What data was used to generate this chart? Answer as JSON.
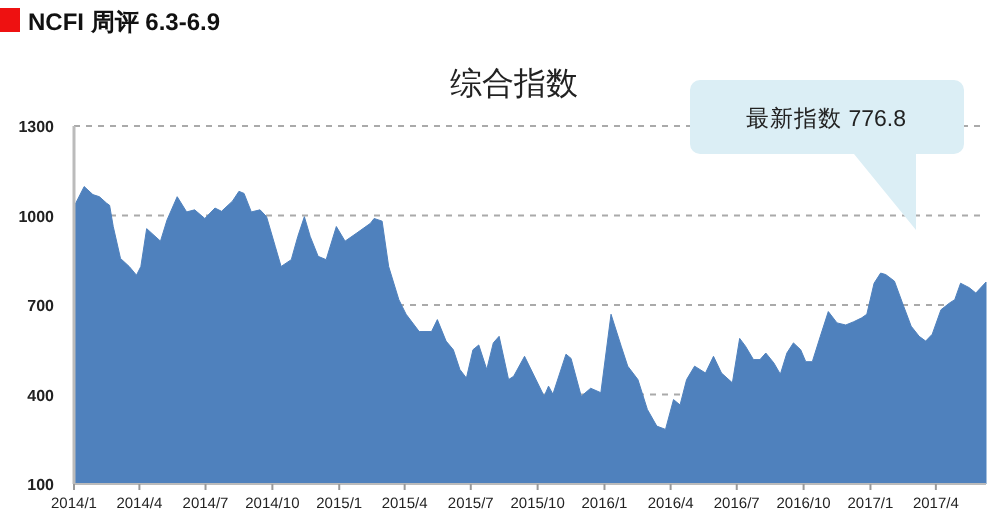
{
  "chart_data": {
    "type": "area",
    "title": "NCFI 周评 6.3-6.9",
    "subtitle": "综合指数",
    "annotations": [
      "最新指数 776.8"
    ],
    "x": [
      "2014-01-01",
      "2014-01-15",
      "2014-01-27",
      "2014-02-05",
      "2014-02-15",
      "2014-02-19",
      "2014-02-24",
      "2014-03-06",
      "2014-03-18",
      "2014-03-28",
      "2014-04-03",
      "2014-04-11",
      "2014-04-30",
      "2014-05-09",
      "2014-05-23",
      "2014-06-05",
      "2014-06-16",
      "2014-06-30",
      "2014-07-14",
      "2014-07-23",
      "2014-08-07",
      "2014-08-16",
      "2014-08-23",
      "2014-09-02",
      "2014-09-14",
      "2014-09-23",
      "2014-10-05",
      "2014-10-13",
      "2014-10-27",
      "2014-11-05",
      "2014-11-14",
      "2014-11-22",
      "2014-12-03",
      "2014-12-14",
      "2014-12-28",
      "2015-01-09",
      "2015-01-25",
      "2015-02-13",
      "2015-02-18",
      "2015-03-01",
      "2015-03-10",
      "2015-03-24",
      "2015-04-03",
      "2015-04-21",
      "2015-05-08",
      "2015-05-16",
      "2015-05-28",
      "2015-06-07",
      "2015-06-16",
      "2015-06-25",
      "2015-07-04",
      "2015-07-12",
      "2015-07-23",
      "2015-08-01",
      "2015-08-09",
      "2015-08-22",
      "2015-08-29",
      "2015-09-13",
      "2015-10-10",
      "2015-10-16",
      "2015-10-22",
      "2015-11-09",
      "2015-11-16",
      "2015-11-30",
      "2015-12-13",
      "2015-12-27",
      "2016-01-10",
      "2016-01-24",
      "2016-02-02",
      "2016-02-16",
      "2016-02-29",
      "2016-03-13",
      "2016-03-25",
      "2016-04-05",
      "2016-04-14",
      "2016-04-23",
      "2016-05-04",
      "2016-05-19",
      "2016-05-30",
      "2016-06-10",
      "2016-06-25",
      "2016-07-05",
      "2016-07-13",
      "2016-07-24",
      "2016-08-02",
      "2016-08-10",
      "2016-08-21",
      "2016-08-30",
      "2016-09-08",
      "2016-09-17",
      "2016-09-27",
      "2016-10-04",
      "2016-10-13",
      "2016-10-24",
      "2016-11-04",
      "2016-11-16",
      "2016-11-28",
      "2016-12-09",
      "2016-12-20",
      "2016-12-27",
      "2017-01-06",
      "2017-01-15",
      "2017-01-22",
      "2017-02-03",
      "2017-02-14",
      "2017-02-26",
      "2017-03-09",
      "2017-03-18",
      "2017-03-27",
      "2017-04-08",
      "2017-04-20",
      "2017-04-27",
      "2017-05-05",
      "2017-05-17",
      "2017-05-26",
      "2017-06-09"
    ],
    "series": [
      {
        "color": "#4f81bd",
        "values": [
          1030,
          1097,
          1070,
          1063,
          1041,
          1034,
          963,
          856,
          829,
          800,
          829,
          956,
          914,
          985,
          1063,
          1012,
          1019,
          990,
          1025,
          1014,
          1048,
          1081,
          1074,
          1012,
          1019,
          996,
          896,
          829,
          852,
          930,
          996,
          930,
          863,
          852,
          963,
          914,
          941,
          974,
          990,
          981,
          829,
          718,
          669,
          611,
          611,
          651,
          579,
          550,
          484,
          455,
          550,
          566,
          484,
          573,
          595,
          450,
          461,
          528,
          394,
          428,
          401,
          535,
          521,
          394,
          421,
          406,
          669,
          562,
          495,
          450,
          350,
          294,
          283,
          383,
          365,
          450,
          495,
          472,
          528,
          472,
          439,
          588,
          562,
          517,
          517,
          539,
          506,
          468,
          539,
          573,
          550,
          510,
          510,
          595,
          678,
          640,
          633,
          644,
          657,
          669,
          773,
          807,
          802,
          780,
          707,
          629,
          595,
          579,
          602,
          684,
          707,
          718,
          773,
          758,
          740,
          776.8
        ]
      }
    ],
    "xlim": [
      "2014-01-01",
      "2017-06-09"
    ],
    "xticks": [
      {
        "value": "2014-01-01",
        "label": "2014/1"
      },
      {
        "value": "2014-04-01",
        "label": "2014/4"
      },
      {
        "value": "2014-07-01",
        "label": "2014/7"
      },
      {
        "value": "2014-10-01",
        "label": "2014/10"
      },
      {
        "value": "2015-01-01",
        "label": "2015/1"
      },
      {
        "value": "2015-04-01",
        "label": "2015/4"
      },
      {
        "value": "2015-07-01",
        "label": "2015/7"
      },
      {
        "value": "2015-10-01",
        "label": "2015/10"
      },
      {
        "value": "2016-01-01",
        "label": "2016/1"
      },
      {
        "value": "2016-04-01",
        "label": "2016/4"
      },
      {
        "value": "2016-07-01",
        "label": "2016/7"
      },
      {
        "value": "2016-10-01",
        "label": "2016/10"
      },
      {
        "value": "2017-01-01",
        "label": "2017/1"
      },
      {
        "value": "2017-04-01",
        "label": "2017/4"
      }
    ],
    "ylim": [
      100,
      1300
    ],
    "yticks": [
      100,
      400,
      700,
      1000,
      1300
    ],
    "grid": "y"
  }
}
